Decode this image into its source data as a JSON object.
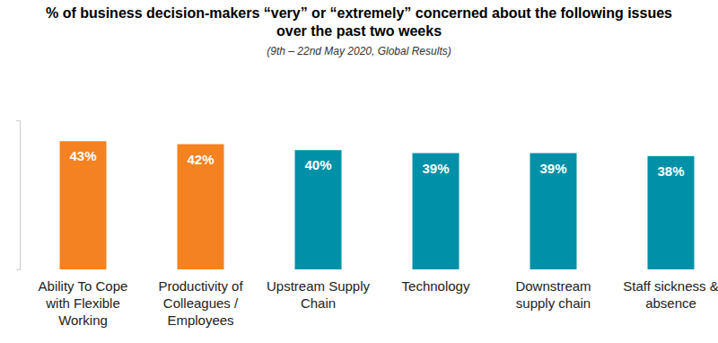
{
  "chart_data": {
    "type": "bar",
    "title": "% of business decision-makers “very” or “extremely” concerned about the following issues over the past two weeks",
    "subtitle": "(9th – 22nd May 2020, Global Results)",
    "categories": [
      "Ability To Cope with Flexible Working",
      "Productivity of Colleagues / Employees",
      "Upstream Supply Chain",
      "Technology",
      "Downstream supply chain",
      "Staff sickness & absence"
    ],
    "values": [
      43,
      42,
      40,
      39,
      39,
      38
    ],
    "value_labels": [
      "43%",
      "42%",
      "40%",
      "39%",
      "39%",
      "38%"
    ],
    "colors": [
      "#f58220",
      "#f58220",
      "#0090a8",
      "#0090a8",
      "#0090a8",
      "#0090a8"
    ],
    "ylim": [
      0,
      50
    ],
    "yticks": [
      0,
      50
    ],
    "tick_labels": "x",
    "data_labels": true,
    "grid": false
  }
}
